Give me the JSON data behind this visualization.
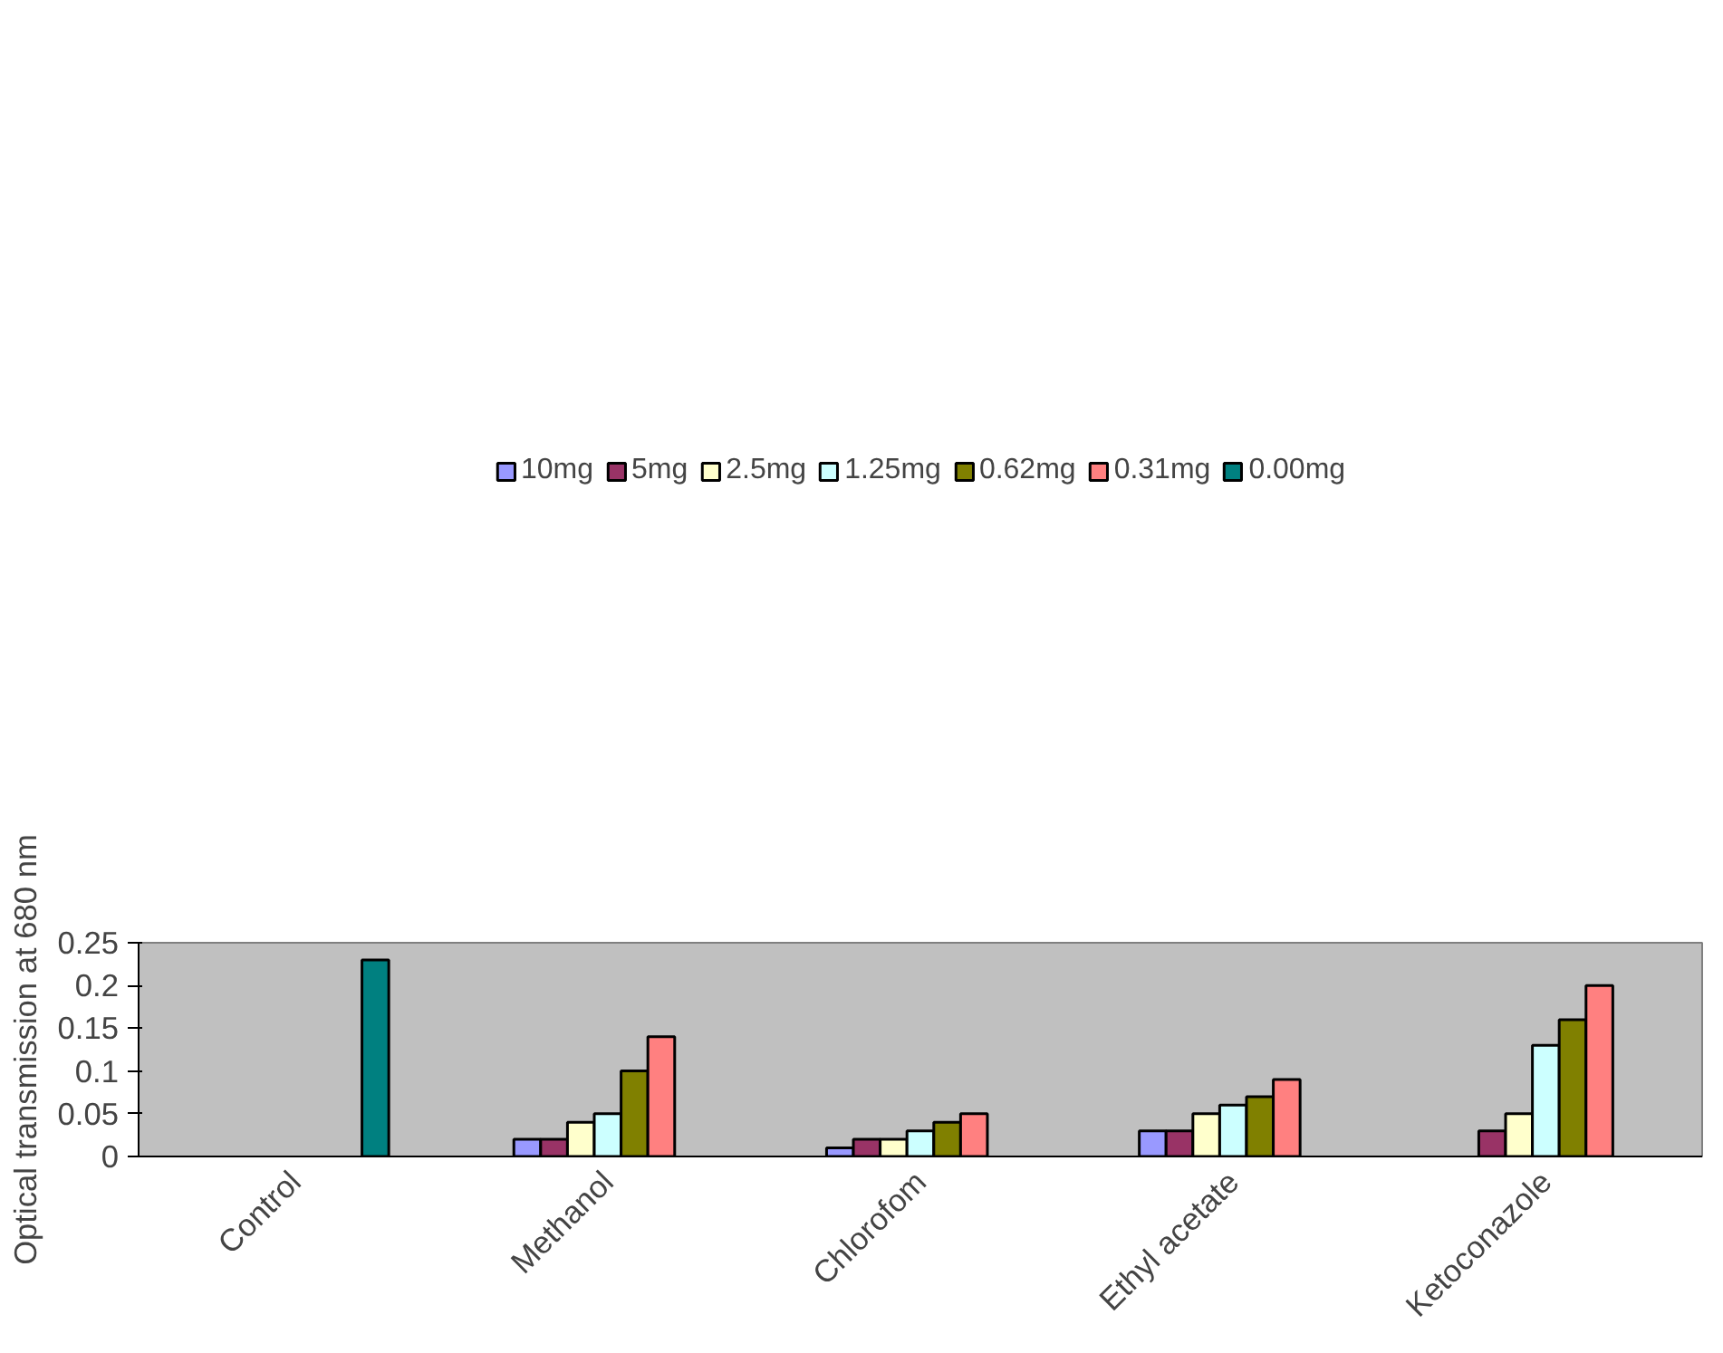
{
  "chart_data": {
    "type": "bar",
    "ylabel": "Optical transmission at 680 nm",
    "categories": [
      "Control",
      "Methanol",
      "Chlorofom",
      "Ethyl acetate",
      "Ketoconazole"
    ],
    "series": [
      {
        "name": "10mg",
        "color": "#9999ff",
        "values": [
          null,
          0.02,
          0.01,
          0.03,
          null
        ]
      },
      {
        "name": "5mg",
        "color": "#993366",
        "values": [
          null,
          0.02,
          0.02,
          0.03,
          0.03
        ]
      },
      {
        "name": "2.5mg",
        "color": "#ffffcc",
        "values": [
          null,
          0.04,
          0.02,
          0.05,
          0.05
        ]
      },
      {
        "name": "1.25mg",
        "color": "#ccffff",
        "values": [
          null,
          0.05,
          0.03,
          0.06,
          0.13
        ]
      },
      {
        "name": "0.62mg",
        "color": "#808000",
        "values": [
          null,
          0.1,
          0.04,
          0.07,
          0.16
        ]
      },
      {
        "name": "0.31mg",
        "color": "#ff8080",
        "values": [
          null,
          0.14,
          0.05,
          0.09,
          0.2
        ]
      },
      {
        "name": "0.00mg",
        "color": "#008080",
        "values": [
          0.23,
          null,
          null,
          null,
          null
        ]
      }
    ],
    "ylim": [
      0,
      0.25
    ],
    "yticks": [
      0,
      0.05,
      0.1,
      0.15,
      0.2,
      0.25
    ],
    "grid": false,
    "legend": "top"
  }
}
